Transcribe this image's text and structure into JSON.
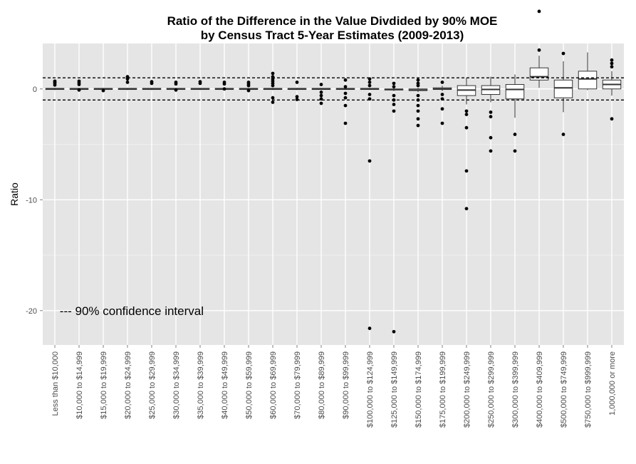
{
  "chart_data": {
    "type": "box",
    "title_line1": "Ratio of the Difference in the Value Divdided by 90% MOE",
    "title_line2": "by Census Tract 5-Year Estimates (2009-2013)",
    "xlabel": "",
    "ylabel": "Ratio",
    "ylim": [
      -23.1,
      4.1
    ],
    "yticks": [
      0,
      -10,
      -20
    ],
    "ytick_labels": [
      "0",
      "-10",
      "-20"
    ],
    "reference_lines": [
      1,
      -1
    ],
    "annotation": "--- 90% confidence interval",
    "annotation_position": {
      "x_category_index": 0.7,
      "y": -20.0
    },
    "categories": [
      "Less than $10,000",
      "$10,000 to $14,999",
      "$15,000 to $19,999",
      "$20,000 to $24,999",
      "$25,000 to $29,999",
      "$30,000 to $34,999",
      "$35,000 to $39,999",
      "$40,000 to $49,999",
      "$50,000 to $59,999",
      "$60,000 to $69,999",
      "$70,000 to $79,999",
      "$80,000 to $89,999",
      "$90,000 to $99,999",
      "$100,000 to $124,999",
      "$125,000 to $149,999",
      "$150,000 to $174,999",
      "$175,000 to $199,999",
      "$200,000 to $249,999",
      "$250,000 to $299,999",
      "$300,000 to $399,999",
      "$400,000 to $409,999",
      "$500,000 to $749,999",
      "$750,000 to $999,999",
      "1,000,000 or more"
    ],
    "boxes": [
      {
        "q1": -0.05,
        "median": 0,
        "q3": 0.05,
        "lw": -0.1,
        "uw": 0.1,
        "outliers": [
          0.35,
          0.5,
          0.6,
          0.7
        ]
      },
      {
        "q1": -0.05,
        "median": 0,
        "q3": 0.05,
        "lw": -0.1,
        "uw": 0.1,
        "outliers": [
          0.4,
          0.55,
          0.7,
          -0.1
        ]
      },
      {
        "q1": -0.05,
        "median": 0,
        "q3": 0.05,
        "lw": -0.1,
        "uw": 0.1,
        "outliers": [
          -0.15
        ]
      },
      {
        "q1": -0.05,
        "median": 0,
        "q3": 0.05,
        "lw": -0.1,
        "uw": 0.1,
        "outliers": [
          0.6,
          0.9,
          1.1
        ]
      },
      {
        "q1": -0.05,
        "median": 0,
        "q3": 0.05,
        "lw": -0.1,
        "uw": 0.1,
        "outliers": [
          0.5,
          0.65
        ]
      },
      {
        "q1": -0.05,
        "median": 0,
        "q3": 0.05,
        "lw": -0.1,
        "uw": 0.1,
        "outliers": [
          0.45,
          0.6,
          -0.1
        ]
      },
      {
        "q1": -0.05,
        "median": 0,
        "q3": 0.05,
        "lw": -0.1,
        "uw": 0.1,
        "outliers": [
          0.5,
          0.65
        ]
      },
      {
        "q1": -0.05,
        "median": 0,
        "q3": 0.05,
        "lw": -0.1,
        "uw": 0.1,
        "outliers": [
          0.45,
          0.6,
          0.0
        ]
      },
      {
        "q1": -0.05,
        "median": 0,
        "q3": 0.05,
        "lw": -0.1,
        "uw": 0.1,
        "outliers": [
          0.3,
          0.45,
          0.6,
          -0.15
        ]
      },
      {
        "q1": -0.05,
        "median": 0,
        "q3": 0.05,
        "lw": -0.1,
        "uw": 0.1,
        "outliers": [
          0.3,
          0.5,
          0.7,
          0.9,
          1.1,
          1.4,
          -0.8,
          -1.2
        ]
      },
      {
        "q1": -0.05,
        "median": 0,
        "q3": 0.05,
        "lw": -0.1,
        "uw": 0.1,
        "outliers": [
          0.6,
          -0.7,
          -0.95
        ]
      },
      {
        "q1": -0.05,
        "median": 0,
        "q3": 0.05,
        "lw": -0.1,
        "uw": 0.1,
        "outliers": [
          0.4,
          -0.3,
          -0.6,
          -0.9,
          -1.3
        ]
      },
      {
        "q1": -0.05,
        "median": 0,
        "q3": 0.05,
        "lw": -0.1,
        "uw": 0.1,
        "outliers": [
          0.8,
          0.2,
          -0.4,
          -0.8,
          -1.5,
          -3.1
        ]
      },
      {
        "q1": -0.05,
        "median": 0,
        "q3": 0.05,
        "lw": -0.1,
        "uw": 0.1,
        "outliers": [
          0.9,
          0.6,
          0.3,
          -0.5,
          -0.9,
          -6.5,
          -21.6
        ]
      },
      {
        "q1": -0.1,
        "median": -0.05,
        "q3": 0.0,
        "lw": -0.2,
        "uw": 0.1,
        "outliers": [
          0.5,
          0.2,
          -0.6,
          -1.0,
          -1.4,
          -2.0,
          -21.9
        ]
      },
      {
        "q1": -0.15,
        "median": -0.1,
        "q3": 0.0,
        "lw": -0.3,
        "uw": 0.1,
        "outliers": [
          0.8,
          0.5,
          0.3,
          -0.6,
          -1.0,
          -1.5,
          -2.0,
          -2.7,
          -3.3
        ]
      },
      {
        "q1": -0.05,
        "median": 0,
        "q3": 0.1,
        "lw": -0.2,
        "uw": 0.3,
        "outliers": [
          0.6,
          -0.5,
          -0.9,
          -1.8,
          -3.1
        ]
      },
      {
        "q1": -0.6,
        "median": -0.1,
        "q3": 0.3,
        "lw": -1.4,
        "uw": 1.0,
        "outliers": [
          -2.0,
          -2.3,
          -3.5,
          -7.4,
          -10.8
        ]
      },
      {
        "q1": -0.5,
        "median": -0.05,
        "q3": 0.3,
        "lw": -1.2,
        "uw": 1.1,
        "outliers": [
          -2.1,
          -2.5,
          -4.4,
          -5.6
        ]
      },
      {
        "q1": -0.9,
        "median": -0.05,
        "q3": 0.4,
        "lw": -2.6,
        "uw": 1.3,
        "outliers": [
          -4.1,
          -5.6
        ]
      },
      {
        "q1": 0.8,
        "median": 1.1,
        "q3": 1.9,
        "lw": 0.1,
        "uw": 3.0,
        "outliers": [
          3.5,
          7.0
        ]
      },
      {
        "q1": -0.8,
        "median": 0.1,
        "q3": 0.8,
        "lw": -2.1,
        "uw": 2.5,
        "outliers": [
          3.2,
          -4.1
        ]
      },
      {
        "q1": 0.0,
        "median": 0.9,
        "q3": 1.6,
        "lw": -0.1,
        "uw": 3.3,
        "outliers": []
      },
      {
        "q1": 0.0,
        "median": 0.4,
        "q3": 0.8,
        "lw": -0.6,
        "uw": 1.6,
        "outliers": [
          2.0,
          2.3,
          2.6,
          -2.7
        ]
      }
    ]
  },
  "colors": {
    "panel": "#e5e5e5",
    "grid_major": "#ffffff",
    "grid_minor": "#f2f2f2",
    "box_fill": "#ffffff",
    "box_stroke": "#333333",
    "points": "#000000",
    "tick_text": "#4d4d4d"
  }
}
